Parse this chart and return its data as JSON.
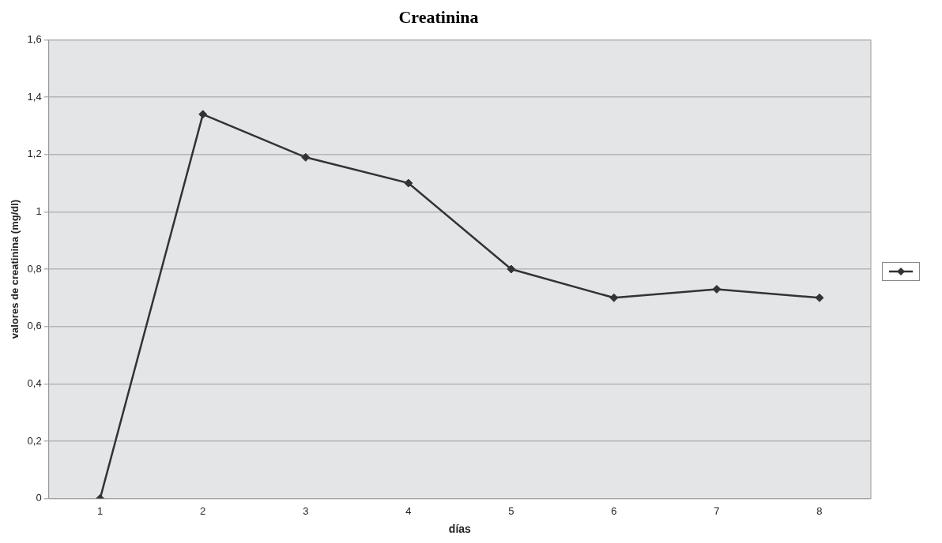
{
  "chart_data": {
    "type": "line",
    "title": "Creatinina",
    "xlabel": "días",
    "ylabel": "valores de creatinina (mg/dl)",
    "categories": [
      "1",
      "2",
      "3",
      "4",
      "5",
      "6",
      "7",
      "8"
    ],
    "series": [
      {
        "color": "#333333",
        "values": [
          0,
          1.34,
          1.19,
          1.1,
          0.8,
          0.7,
          0.73,
          0.7
        ]
      }
    ],
    "ylim": [
      0,
      1.6
    ],
    "yticks": [
      0,
      {
        "value": 0.2,
        "label": "0,2"
      },
      {
        "value": 0.4,
        "label": "0,4"
      },
      {
        "value": 0.6,
        "label": "0,6"
      },
      {
        "value": 0.8,
        "label": "0,8"
      },
      1,
      {
        "value": 1.2,
        "label": "1,2"
      },
      {
        "value": 1.4,
        "label": "1,4"
      },
      {
        "value": 1.6,
        "label": "1,6"
      }
    ],
    "grid": "y",
    "marker": "diamond",
    "line_style": "solid"
  }
}
